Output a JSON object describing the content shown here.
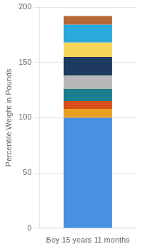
{
  "chart_data": {
    "type": "bar",
    "stacked": true,
    "categories": [
      "Boy 15 years 11 months"
    ],
    "ylabel": "Percentile Weight in Pounds",
    "ylim": [
      0,
      200
    ],
    "yticks": [
      0,
      50,
      100,
      150,
      200
    ],
    "grid": true,
    "series": [
      {
        "color": "#4a90e2",
        "values": [
          100
        ]
      },
      {
        "color": "#e8a020",
        "values": [
          8
        ]
      },
      {
        "color": "#d94e1a",
        "values": [
          7
        ]
      },
      {
        "color": "#1a7f8e",
        "values": [
          11
        ]
      },
      {
        "color": "#b8b8b8",
        "values": [
          12
        ]
      },
      {
        "color": "#1e3a5f",
        "values": [
          17
        ]
      },
      {
        "color": "#f5d657",
        "values": [
          13
        ]
      },
      {
        "color": "#29aadf",
        "values": [
          16
        ]
      },
      {
        "color": "#b5673a",
        "values": [
          8
        ]
      }
    ]
  }
}
